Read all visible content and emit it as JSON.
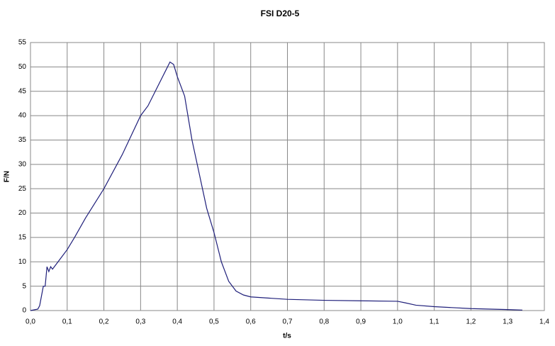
{
  "chart_data": {
    "type": "line",
    "title": "FSI D20-5",
    "x_label": "t/s",
    "y_label": "F/N",
    "x": [
      0,
      0.02,
      0.025,
      0.03,
      0.035,
      0.04,
      0.045,
      0.05,
      0.055,
      0.06,
      0.07,
      0.08,
      0.1,
      0.12,
      0.15,
      0.2,
      0.25,
      0.3,
      0.32,
      0.34,
      0.36,
      0.37,
      0.38,
      0.39,
      0.4,
      0.42,
      0.44,
      0.46,
      0.48,
      0.5,
      0.52,
      0.54,
      0.56,
      0.58,
      0.6,
      0.7,
      0.8,
      0.9,
      1.0,
      1.02,
      1.05,
      1.1,
      1.2,
      1.3,
      1.34
    ],
    "series": [
      {
        "name": "F",
        "color": "#1f1f7a",
        "values": [
          0,
          0.3,
          1,
          3,
          5,
          5,
          9,
          8,
          9,
          8.5,
          9.5,
          10.5,
          12.5,
          15,
          19,
          25,
          32,
          40,
          42,
          45,
          48,
          49.5,
          51,
          50.5,
          48,
          44,
          35,
          28,
          21,
          16,
          10,
          6,
          4,
          3.2,
          2.8,
          2.3,
          2.1,
          2,
          1.9,
          1.6,
          1.1,
          0.8,
          0.4,
          0.2,
          0.1
        ]
      }
    ],
    "xlim": [
      0,
      1.4
    ],
    "xticks": [
      {
        "value": 0,
        "label": "0,0"
      },
      {
        "value": 0.1,
        "label": "0,1"
      },
      {
        "value": 0.2,
        "label": "0,2"
      },
      {
        "value": 0.3,
        "label": "0,3"
      },
      {
        "value": 0.4,
        "label": "0,4"
      },
      {
        "value": 0.5,
        "label": "0,5"
      },
      {
        "value": 0.6,
        "label": "0,6"
      },
      {
        "value": 0.7,
        "label": "0,7"
      },
      {
        "value": 0.8,
        "label": "0,8"
      },
      {
        "value": 0.9,
        "label": "0,9"
      },
      {
        "value": 1.0,
        "label": "1,0"
      },
      {
        "value": 1.1,
        "label": "1,1"
      },
      {
        "value": 1.2,
        "label": "1,2"
      },
      {
        "value": 1.3,
        "label": "1,3"
      },
      {
        "value": 1.4,
        "label": "1,4"
      }
    ],
    "ylim": [
      0,
      55
    ],
    "yticks": [
      0,
      5,
      10,
      15,
      20,
      25,
      30,
      35,
      40,
      45,
      50,
      55
    ],
    "grid": true
  }
}
